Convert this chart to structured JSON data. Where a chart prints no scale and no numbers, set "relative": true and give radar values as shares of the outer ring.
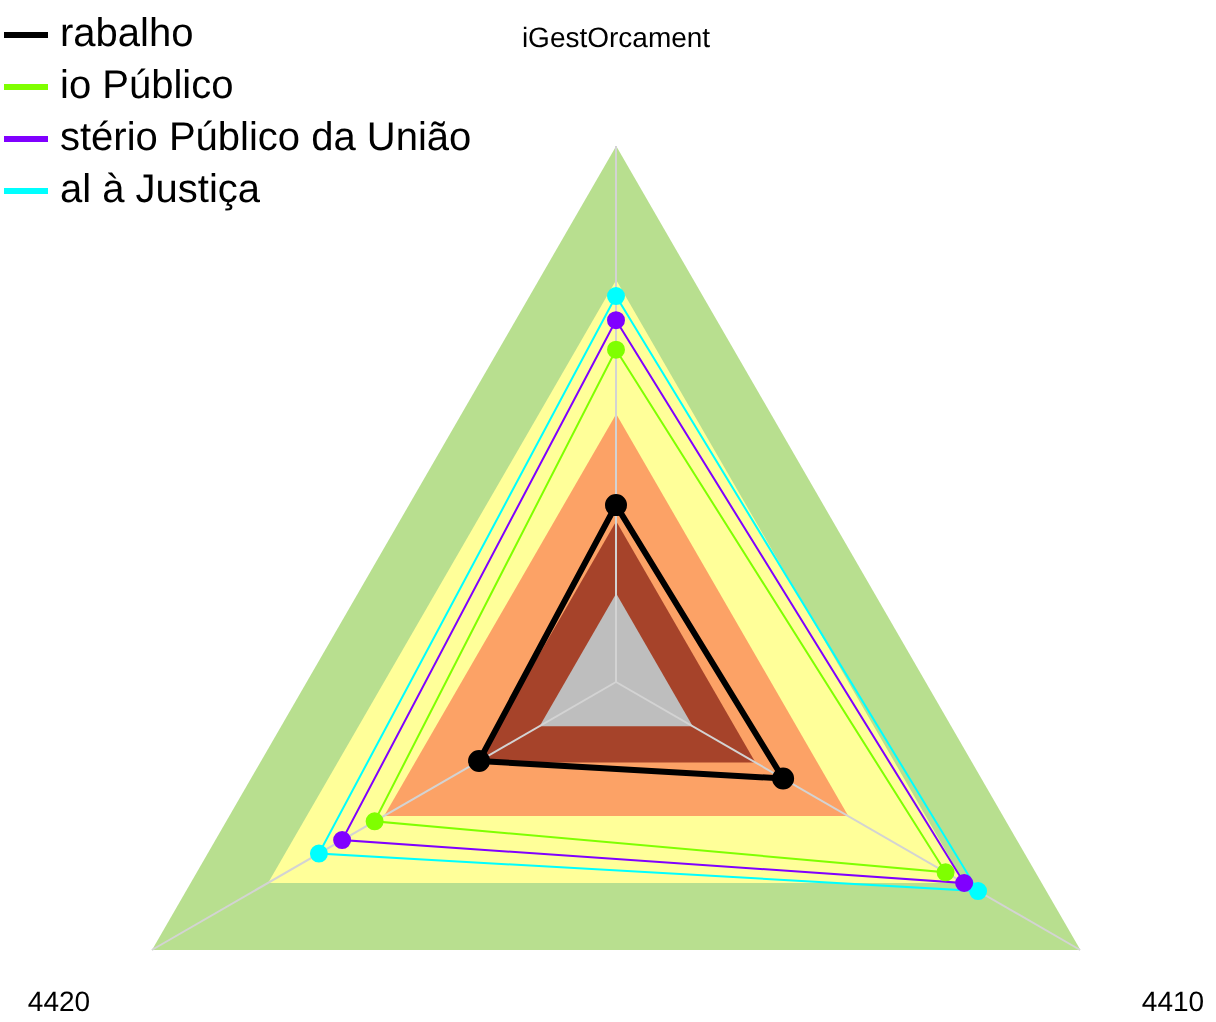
{
  "chart_data": {
    "type": "radar",
    "categories": [
      "iGestOrcament",
      "4410",
      "4420"
    ],
    "relative": true,
    "legend": "top left",
    "marker": "circle",
    "series": [
      {
        "name": "rabalho",
        "color": "#000000",
        "values": [
          0.33,
          0.36,
          0.295
        ]
      },
      {
        "name": "io Público",
        "color": "#7fff00",
        "values": [
          0.62,
          0.71,
          0.52
        ]
      },
      {
        "name": "stério Público da União",
        "color": "#8000ff",
        "values": [
          0.675,
          0.75,
          0.59
        ]
      },
      {
        "name": "al à Justiça",
        "color": "#00ffff",
        "values": [
          0.72,
          0.78,
          0.64
        ]
      }
    ]
  }
}
